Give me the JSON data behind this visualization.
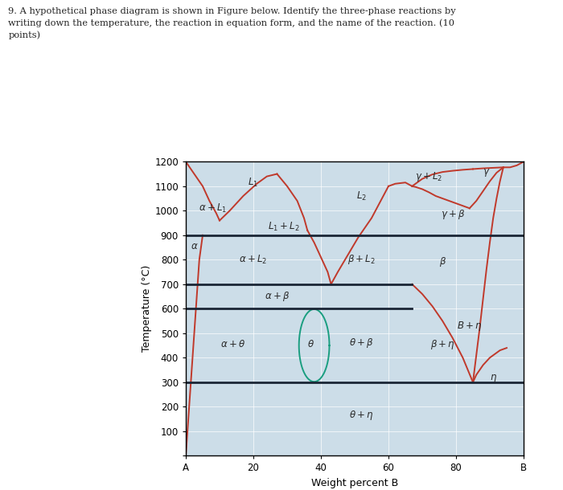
{
  "title_text": "9. A hypothetical phase diagram is shown in Figure below. Identify the three-phase reactions by\nwriting down the temperature, the reaction in equation form, and the name of the reaction. (10\npoints)",
  "xlabel": "Weight percent B",
  "ylabel": "Temperature (°C)",
  "xlim": [
    0,
    100
  ],
  "ylim": [
    0,
    1200
  ],
  "xticks": [
    0,
    20,
    40,
    60,
    80,
    100
  ],
  "xticklabels": [
    "A",
    "20",
    "40",
    "60",
    "80",
    "B"
  ],
  "yticks": [
    0,
    100,
    200,
    300,
    400,
    500,
    600,
    700,
    800,
    900,
    1000,
    1100,
    1200
  ],
  "bg_color": "#ccdde8",
  "line_color_red": "#c0392b",
  "line_color_teal": "#1a9e80",
  "horizontal_line_color": "#1a2535",
  "gray_bar_color": "#c8c8cc"
}
